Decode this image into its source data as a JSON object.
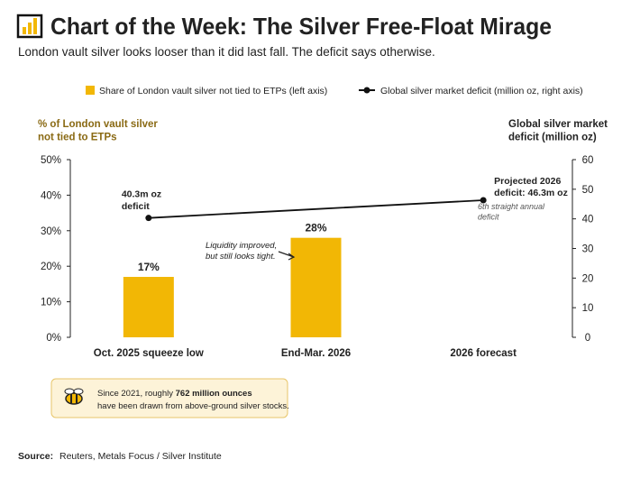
{
  "chart_data": {
    "type": "combo",
    "title": "Chart of the Week: The Silver Free-Float Mirage",
    "subtitle": "London vault silver looks looser than it did last fall. The deficit says otherwise.",
    "y_label": "% of London vault silver\nnot tied to ETPs",
    "y2_label": "Global silver market\ndeficit (million oz)",
    "categories": [
      "Oct. 2025 squeeze low",
      "End-Mar. 2026",
      "2026 forecast"
    ],
    "series": [
      {
        "name": "Share of London vault silver not tied to ETPs (left axis)",
        "type": "bar",
        "color": "#f2b705",
        "values": [
          17,
          28,
          null
        ],
        "value_labels": [
          "17%",
          "28%",
          null
        ]
      },
      {
        "name": "Global silver market deficit (million oz, right axis)",
        "type": "line",
        "axis": "y2",
        "color": "#111111",
        "values": [
          40.3,
          43.3,
          46.3
        ],
        "value_labels": [
          "40.3m oz\ndeficit",
          null,
          "Projected 2026\ndeficit: 46.3m oz"
        ]
      }
    ],
    "ylim": [
      0,
      50
    ],
    "yticks": [
      {
        "value": 0,
        "label": "0%"
      },
      {
        "value": 10,
        "label": "10%"
      },
      {
        "value": 20,
        "label": "20%"
      },
      {
        "value": 30,
        "label": "30%"
      },
      {
        "value": 40,
        "label": "40%"
      },
      {
        "value": 50,
        "label": "50%"
      }
    ],
    "y2lim": [
      0,
      60
    ],
    "y2ticks": [
      0,
      10,
      20,
      30,
      40,
      50,
      60
    ],
    "annotations": [
      "Liquidity improved,\nbut still looks tight.",
      "6th straight annual\ndeficit"
    ],
    "note": [
      "Since 2021, roughly ",
      "762 million ounces",
      " have been drawn from above-ground silver stocks."
    ],
    "source_label": "Source:",
    "source": "Reuters, Metals Focus / Silver Institute"
  }
}
